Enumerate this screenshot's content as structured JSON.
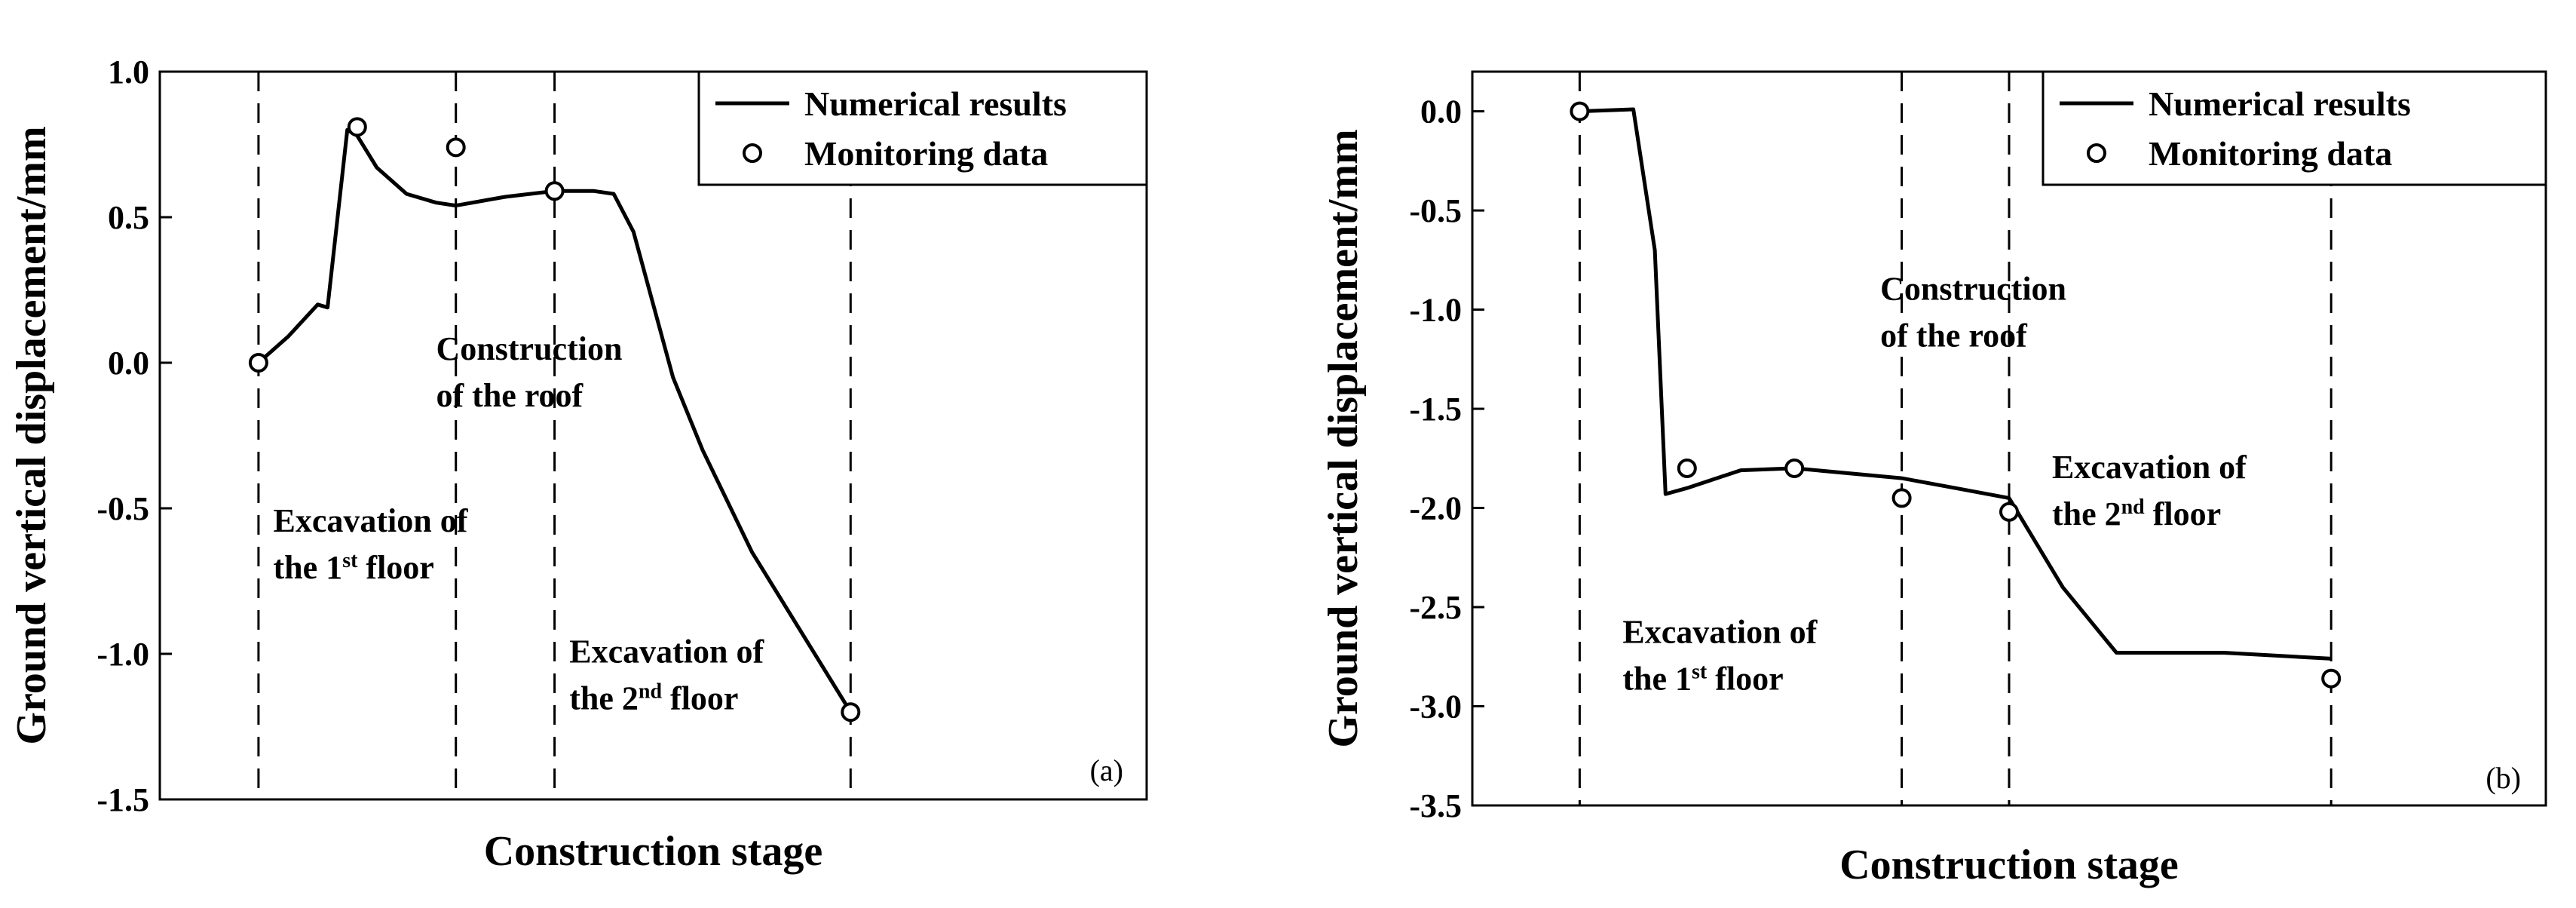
{
  "chart_data": [
    {
      "type": "line",
      "panel_label": "(a)",
      "xlabel": "Construction stage",
      "ylabel": "Ground vertical displacement/mm",
      "ylim": [
        -1.5,
        1.0
      ],
      "yticks": [
        1.0,
        0.5,
        0.0,
        -0.5,
        -1.0,
        -1.5
      ],
      "ytick_labels": [
        "1.0",
        "0.5",
        "0.0",
        "-0.5",
        "-1.0",
        "-1.5"
      ],
      "xlim": [
        0,
        100
      ],
      "stage_boundaries": [
        10,
        30,
        40,
        70
      ],
      "series": [
        {
          "name": "Numerical results",
          "style": "line",
          "x": [
            10,
            13,
            16,
            17,
            19,
            20,
            22,
            25,
            28,
            30,
            35,
            40,
            44,
            46,
            48,
            50,
            52,
            55,
            60,
            70
          ],
          "y": [
            0.0,
            0.09,
            0.2,
            0.19,
            0.8,
            0.78,
            0.67,
            0.58,
            0.55,
            0.54,
            0.57,
            0.59,
            0.59,
            0.58,
            0.45,
            0.2,
            -0.05,
            -0.3,
            -0.65,
            -1.2
          ]
        },
        {
          "name": "Monitoring data",
          "style": "marker",
          "x": [
            10,
            20,
            30,
            40,
            70
          ],
          "y": [
            0.0,
            0.81,
            0.74,
            0.59,
            -1.2
          ]
        }
      ],
      "annotations": [
        {
          "lines": [
            [
              "Construction"
            ],
            [
              "of the roof"
            ]
          ],
          "x": 28,
          "y": 0.01
        },
        {
          "lines": [
            [
              "Excavation of"
            ],
            [
              "the 1",
              "st",
              " floor"
            ]
          ],
          "x": 11.5,
          "y": -0.58
        },
        {
          "lines": [
            [
              "Excavation of"
            ],
            [
              "the 2",
              "nd",
              " floor"
            ]
          ],
          "x": 41.5,
          "y": -1.03
        }
      ],
      "legend": {
        "placement": "top-right"
      }
    },
    {
      "type": "line",
      "panel_label": "(b)",
      "xlabel": "Construction stage",
      "ylabel": "Ground vertical displacement/mm",
      "ylim": [
        -3.5,
        0.2
      ],
      "yticks": [
        0.0,
        -0.5,
        -1.0,
        -1.5,
        -2.0,
        -2.5,
        -3.0,
        -3.5
      ],
      "ytick_labels": [
        "0.0",
        "-0.5",
        "-1.0",
        "-1.5",
        "-2.0",
        "-2.5",
        "-3.0",
        "-3.5"
      ],
      "xlim": [
        0,
        100
      ],
      "stage_boundaries": [
        10,
        40,
        50,
        80
      ],
      "series": [
        {
          "name": "Numerical results",
          "style": "line",
          "x": [
            10,
            15,
            17,
            18,
            20,
            25,
            30,
            40,
            45,
            50,
            55,
            60,
            70,
            80
          ],
          "y": [
            0.0,
            0.01,
            -0.7,
            -1.93,
            -1.9,
            -1.81,
            -1.8,
            -1.85,
            -1.9,
            -1.95,
            -2.4,
            -2.73,
            -2.73,
            -2.76
          ]
        },
        {
          "name": "Monitoring data",
          "style": "marker",
          "x": [
            10,
            20,
            30,
            40,
            50,
            80
          ],
          "y": [
            0.0,
            -1.8,
            -1.8,
            -1.95,
            -2.02,
            -2.86
          ]
        }
      ],
      "annotations": [
        {
          "lines": [
            [
              "Construction"
            ],
            [
              "of the roof"
            ]
          ],
          "x": 38,
          "y": -0.95
        },
        {
          "lines": [
            [
              "Excavation of"
            ],
            [
              "the 2",
              "nd",
              " floor"
            ]
          ],
          "x": 54,
          "y": -1.85
        },
        {
          "lines": [
            [
              "Excavation of"
            ],
            [
              "the 1",
              "st",
              " floor"
            ]
          ],
          "x": 14,
          "y": -2.68
        }
      ],
      "legend": {
        "placement": "top-right"
      }
    }
  ]
}
